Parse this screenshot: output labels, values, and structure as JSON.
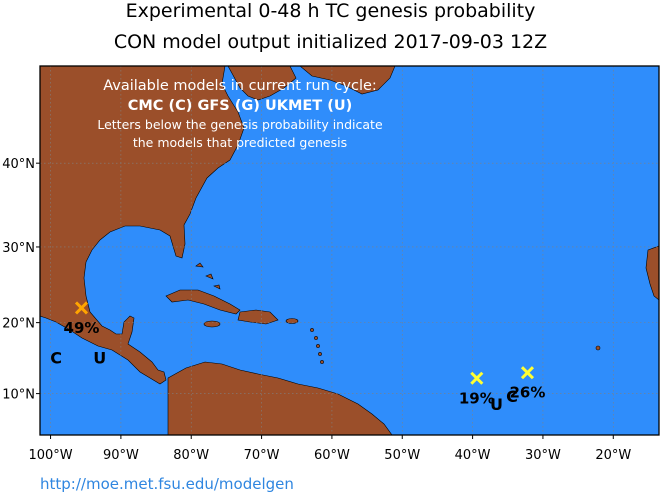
{
  "header": {
    "title_line1": "Experimental 0-48 h TC genesis probability",
    "title_line2": "CON model output initialized 2017-09-03 12Z"
  },
  "legend": {
    "line1": "Available models in current run cycle:",
    "line2": "CMC (C)  GFS (G)  UKMET (U)",
    "line3": "Letters below the genesis probability indicate",
    "line4": "the models that predicted genesis"
  },
  "map": {
    "ocean_color": "#2f8dfb",
    "land_color": "#9b4f2a",
    "lon_ticks": [
      "100°W",
      "90°W",
      "80°W",
      "70°W",
      "60°W",
      "50°W",
      "40°W",
      "30°W",
      "20°W"
    ],
    "lat_ticks": [
      "10°N",
      "20°N",
      "30°N",
      "40°N"
    ],
    "systems": [
      {
        "prob": "49%",
        "lon": -95.6,
        "lat": 22.0,
        "color": "#ffa500",
        "models": [
          "C",
          "U"
        ]
      },
      {
        "prob": "19%",
        "lon": -39.4,
        "lat": 12.2,
        "color": "#ffff33",
        "models": [
          "U",
          "C"
        ]
      },
      {
        "prob": "26%",
        "lon": -32.2,
        "lat": 13.0,
        "color": "#ffff33",
        "models": [
          "C"
        ]
      }
    ]
  },
  "footer": {
    "url": "http://moe.met.fsu.edu/modelgen"
  }
}
